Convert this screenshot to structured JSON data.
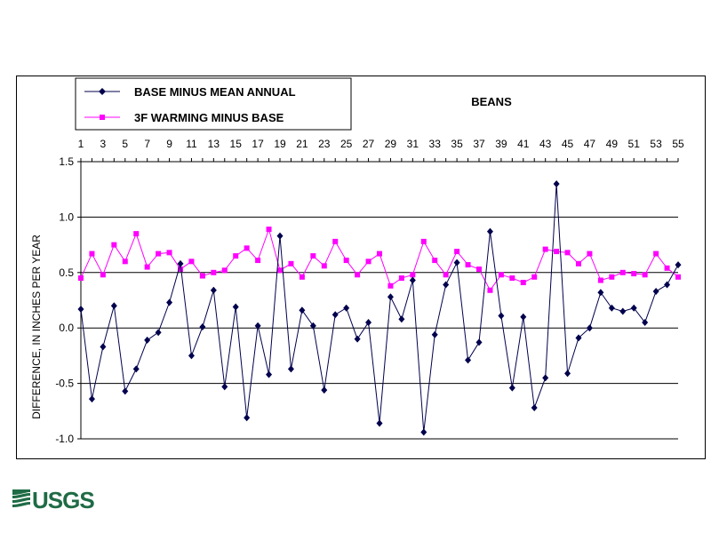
{
  "chart_data": {
    "type": "line",
    "title": "BEANS",
    "ylabel": "DIFFERENCE, IN INCHES PER YEAR",
    "xlabel": "",
    "ylim": [
      -1.0,
      1.5
    ],
    "yticks": [
      -1.0,
      -0.5,
      0.0,
      0.5,
      1.0,
      1.5
    ],
    "ytick_labels": [
      "-1.0",
      "-0.5",
      "0.0",
      "0.5",
      "1.0",
      "1.5"
    ],
    "x": [
      1,
      2,
      3,
      4,
      5,
      6,
      7,
      8,
      9,
      10,
      11,
      12,
      13,
      14,
      15,
      16,
      17,
      18,
      19,
      20,
      21,
      22,
      23,
      24,
      25,
      26,
      27,
      28,
      29,
      30,
      31,
      32,
      33,
      34,
      35,
      36,
      37,
      38,
      39,
      40,
      41,
      42,
      43,
      44,
      45,
      46,
      47,
      48,
      49,
      50,
      51,
      52,
      53,
      54,
      55
    ],
    "xtick_labels": [
      "1",
      "3",
      "5",
      "7",
      "9",
      "11",
      "13",
      "15",
      "17",
      "19",
      "21",
      "23",
      "25",
      "27",
      "29",
      "31",
      "33",
      "35",
      "37",
      "39",
      "41",
      "43",
      "45",
      "47",
      "49",
      "51",
      "53",
      "55"
    ],
    "xaxis_position": "top",
    "grid": "horizontal",
    "legend_position": "top-left",
    "series": [
      {
        "name": "BASE MINUS MEAN ANNUAL",
        "color": "#00004D",
        "marker": "diamond",
        "values": [
          0.17,
          -0.64,
          -0.17,
          0.2,
          -0.57,
          -0.37,
          -0.11,
          -0.04,
          0.23,
          0.58,
          -0.25,
          0.01,
          0.34,
          -0.53,
          0.19,
          -0.81,
          0.02,
          -0.42,
          0.83,
          -0.37,
          0.16,
          0.02,
          -0.56,
          0.12,
          0.18,
          -0.1,
          0.05,
          -0.86,
          0.28,
          0.08,
          0.43,
          -0.94,
          -0.06,
          0.39,
          0.59,
          -0.29,
          -0.13,
          0.87,
          0.11,
          -0.54,
          0.1,
          -0.72,
          -0.45,
          1.3,
          -0.41,
          -0.09,
          0.0,
          0.32,
          0.18,
          0.15,
          0.18,
          0.05,
          0.33,
          0.39,
          0.57
        ]
      },
      {
        "name": "3F WARMING MINUS BASE",
        "color": "#FF00FF",
        "marker": "square",
        "values": [
          0.45,
          0.67,
          0.48,
          0.75,
          0.6,
          0.85,
          0.55,
          0.67,
          0.68,
          0.53,
          0.6,
          0.47,
          0.5,
          0.52,
          0.65,
          0.72,
          0.61,
          0.89,
          0.52,
          0.58,
          0.46,
          0.65,
          0.56,
          0.78,
          0.61,
          0.48,
          0.6,
          0.67,
          0.38,
          0.45,
          0.48,
          0.78,
          0.61,
          0.48,
          0.69,
          0.57,
          0.53,
          0.34,
          0.48,
          0.45,
          0.41,
          0.46,
          0.71,
          0.69,
          0.68,
          0.58,
          0.67,
          0.43,
          0.46,
          0.5,
          0.49,
          0.48,
          0.67,
          0.54,
          0.46
        ]
      }
    ]
  },
  "logo": {
    "text": "USGS",
    "color": "#1F6B45"
  }
}
